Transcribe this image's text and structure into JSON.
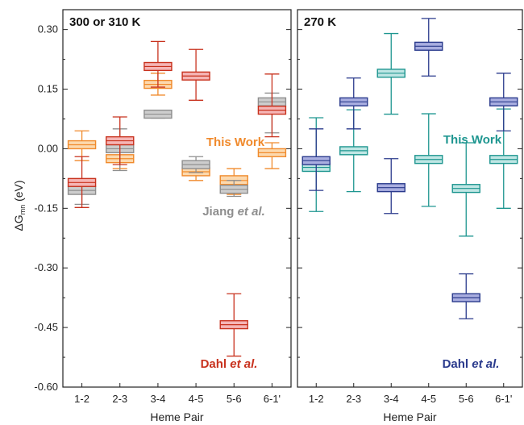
{
  "chart_data": [
    {
      "type": "box",
      "title": "300 or 310 K",
      "xlabel": "Heme Pair",
      "ylabel": "ΔG",
      "ylabel_sub": "mn",
      "ylabel_unit": " (eV)",
      "categories": [
        "1-2",
        "2-3",
        "3-4",
        "4-5",
        "5-6",
        "6-1'"
      ],
      "ylim": [
        -0.6,
        0.35
      ],
      "yticks": [
        "0.30",
        "0.15",
        "0.00",
        "-0.15",
        "-0.30",
        "-0.45",
        "-0.60"
      ],
      "ytick_values": [
        0.3,
        0.15,
        0.0,
        -0.15,
        -0.3,
        -0.45,
        -0.6
      ],
      "series": [
        {
          "key": "this-work",
          "color": "#F08A2C",
          "fill": "#FCD9AE",
          "boxes": [
            {
              "cat": "1-2",
              "center": 0.01,
              "q1": 0.0,
              "q3": 0.02,
              "lo": -0.03,
              "hi": 0.045
            },
            {
              "cat": "2-3",
              "center": -0.025,
              "q1": -0.035,
              "q3": -0.015,
              "lo": -0.05,
              "hi": -0.005
            },
            {
              "cat": "3-4",
              "center": 0.162,
              "q1": 0.152,
              "q3": 0.172,
              "lo": 0.135,
              "hi": 0.19
            },
            {
              "cat": "4-5",
              "center": -0.058,
              "q1": -0.068,
              "q3": -0.048,
              "lo": -0.08,
              "hi": -0.03
            },
            {
              "cat": "5-6",
              "center": -0.08,
              "q1": -0.09,
              "q3": -0.068,
              "lo": -0.115,
              "hi": -0.05
            },
            {
              "cat": "6-1'",
              "center": -0.01,
              "q1": -0.02,
              "q3": 0.0,
              "lo": -0.05,
              "hi": 0.015
            }
          ]
        },
        {
          "key": "jiang",
          "color": "#8E8E8E",
          "fill": "#CDCDCD",
          "boxes": [
            {
              "cat": "1-2",
              "center": -0.105,
              "q1": -0.115,
              "q3": -0.095,
              "lo": -0.14,
              "hi": -0.085
            },
            {
              "cat": "2-3",
              "center": 0.0,
              "q1": -0.01,
              "q3": 0.01,
              "lo": -0.055,
              "hi": 0.05
            },
            {
              "cat": "3-4",
              "center": 0.087,
              "q1": 0.077,
              "q3": 0.097,
              "lo": 0.077,
              "hi": 0.097
            },
            {
              "cat": "4-5",
              "center": -0.04,
              "q1": -0.05,
              "q3": -0.03,
              "lo": -0.06,
              "hi": -0.02
            },
            {
              "cat": "5-6",
              "center": -0.102,
              "q1": -0.112,
              "q3": -0.092,
              "lo": -0.12,
              "hi": -0.08
            },
            {
              "cat": "6-1'",
              "center": 0.118,
              "q1": 0.108,
              "q3": 0.128,
              "lo": 0.04,
              "hi": 0.14
            }
          ]
        },
        {
          "key": "dahl",
          "color": "#C8321E",
          "fill": "#F5B5B5",
          "boxes": [
            {
              "cat": "1-2",
              "center": -0.085,
              "q1": -0.095,
              "q3": -0.075,
              "lo": -0.148,
              "hi": -0.02
            },
            {
              "cat": "2-3",
              "center": 0.02,
              "q1": 0.01,
              "q3": 0.03,
              "lo": -0.04,
              "hi": 0.08
            },
            {
              "cat": "3-4",
              "center": 0.207,
              "q1": 0.197,
              "q3": 0.217,
              "lo": 0.155,
              "hi": 0.27
            },
            {
              "cat": "4-5",
              "center": 0.183,
              "q1": 0.173,
              "q3": 0.193,
              "lo": 0.122,
              "hi": 0.25
            },
            {
              "cat": "5-6",
              "center": -0.443,
              "q1": -0.453,
              "q3": -0.433,
              "lo": -0.522,
              "hi": -0.365
            },
            {
              "cat": "6-1'",
              "center": 0.097,
              "q1": 0.087,
              "q3": 0.107,
              "lo": 0.03,
              "hi": 0.188
            }
          ]
        }
      ],
      "annotations": [
        {
          "key": "this-work",
          "text": "This Work",
          "italic": "",
          "color": "#F08A2C"
        },
        {
          "key": "jiang",
          "text": "Jiang ",
          "italic": "et al.",
          "color": "#8E8E8E"
        },
        {
          "key": "dahl",
          "text": "Dahl ",
          "italic": "et al.",
          "color": "#C8321E"
        }
      ]
    },
    {
      "type": "box",
      "title": "270 K",
      "xlabel": "Heme Pair",
      "categories": [
        "1-2",
        "2-3",
        "3-4",
        "4-5",
        "5-6",
        "6-1'"
      ],
      "ylim": [
        -0.6,
        0.35
      ],
      "series": [
        {
          "key": "this-work",
          "color": "#1E9690",
          "fill": "#BFE6E4",
          "boxes": [
            {
              "cat": "1-2",
              "center": -0.047,
              "q1": -0.057,
              "q3": -0.037,
              "lo": -0.158,
              "hi": 0.078
            },
            {
              "cat": "2-3",
              "center": -0.005,
              "q1": -0.015,
              "q3": 0.005,
              "lo": -0.108,
              "hi": 0.098
            },
            {
              "cat": "3-4",
              "center": 0.19,
              "q1": 0.18,
              "q3": 0.2,
              "lo": 0.087,
              "hi": 0.29
            },
            {
              "cat": "4-5",
              "center": -0.027,
              "q1": -0.037,
              "q3": -0.017,
              "lo": -0.145,
              "hi": 0.088
            },
            {
              "cat": "5-6",
              "center": -0.1,
              "q1": -0.11,
              "q3": -0.09,
              "lo": -0.22,
              "hi": 0.015
            },
            {
              "cat": "6-1'",
              "center": -0.027,
              "q1": -0.037,
              "q3": -0.017,
              "lo": -0.15,
              "hi": 0.1
            }
          ]
        },
        {
          "key": "dahl",
          "color": "#2A3A8C",
          "fill": "#A9AEE0",
          "boxes": [
            {
              "cat": "1-2",
              "center": -0.03,
              "q1": -0.04,
              "q3": -0.02,
              "lo": -0.105,
              "hi": 0.05
            },
            {
              "cat": "2-3",
              "center": 0.118,
              "q1": 0.108,
              "q3": 0.128,
              "lo": 0.05,
              "hi": 0.178
            },
            {
              "cat": "3-4",
              "center": -0.098,
              "q1": -0.108,
              "q3": -0.088,
              "lo": -0.163,
              "hi": -0.025
            },
            {
              "cat": "4-5",
              "center": 0.258,
              "q1": 0.248,
              "q3": 0.268,
              "lo": 0.183,
              "hi": 0.328
            },
            {
              "cat": "5-6",
              "center": -0.375,
              "q1": -0.385,
              "q3": -0.365,
              "lo": -0.428,
              "hi": -0.315
            },
            {
              "cat": "6-1'",
              "center": 0.118,
              "q1": 0.108,
              "q3": 0.128,
              "lo": 0.045,
              "hi": 0.19
            }
          ]
        }
      ],
      "annotations": [
        {
          "key": "this-work",
          "text": "This Work",
          "italic": "",
          "color": "#1E9690"
        },
        {
          "key": "dahl",
          "text": "Dahl ",
          "italic": "et al.",
          "color": "#2A3A8C"
        }
      ]
    }
  ]
}
